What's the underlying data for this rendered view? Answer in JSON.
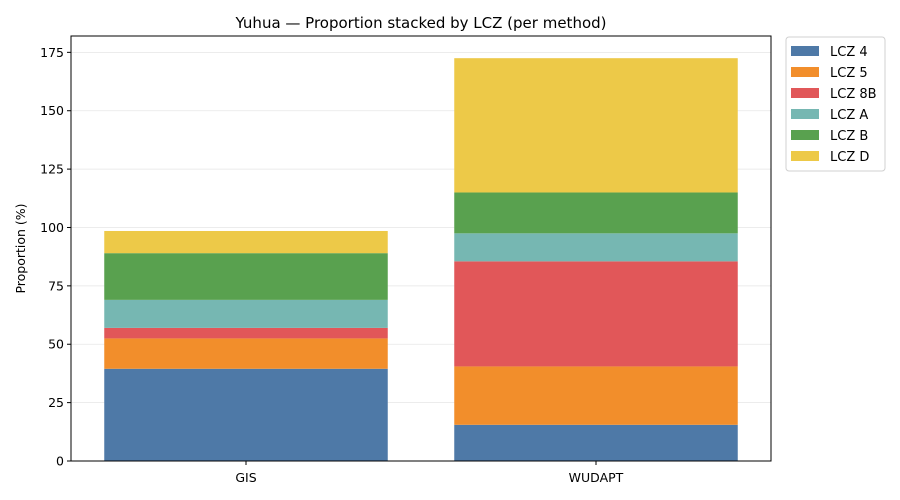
{
  "chart_data": {
    "type": "bar",
    "stacked": true,
    "title": "Yuhua — Proportion stacked by LCZ (per method)",
    "xlabel": "",
    "ylabel": "Proportion (%)",
    "categories": [
      "GIS",
      "WUDAPT"
    ],
    "ylim": [
      0,
      182
    ],
    "yticks": [
      0,
      25,
      50,
      75,
      100,
      125,
      150,
      175
    ],
    "grid": "y",
    "legend_placement": "outside-top-right",
    "series": [
      {
        "name": "LCZ 4",
        "color": "#4e79a7",
        "values": [
          39.5,
          15.5
        ]
      },
      {
        "name": "LCZ 5",
        "color": "#f28e2b",
        "values": [
          13.0,
          25.0
        ]
      },
      {
        "name": "LCZ 8B",
        "color": "#e15759",
        "values": [
          4.5,
          45.0
        ]
      },
      {
        "name": "LCZ A",
        "color": "#76b7b2",
        "values": [
          12.0,
          12.0
        ]
      },
      {
        "name": "LCZ B",
        "color": "#59a14f",
        "values": [
          20.0,
          17.5
        ]
      },
      {
        "name": "LCZ D",
        "color": "#edc948",
        "values": [
          9.5,
          57.5
        ]
      }
    ]
  }
}
